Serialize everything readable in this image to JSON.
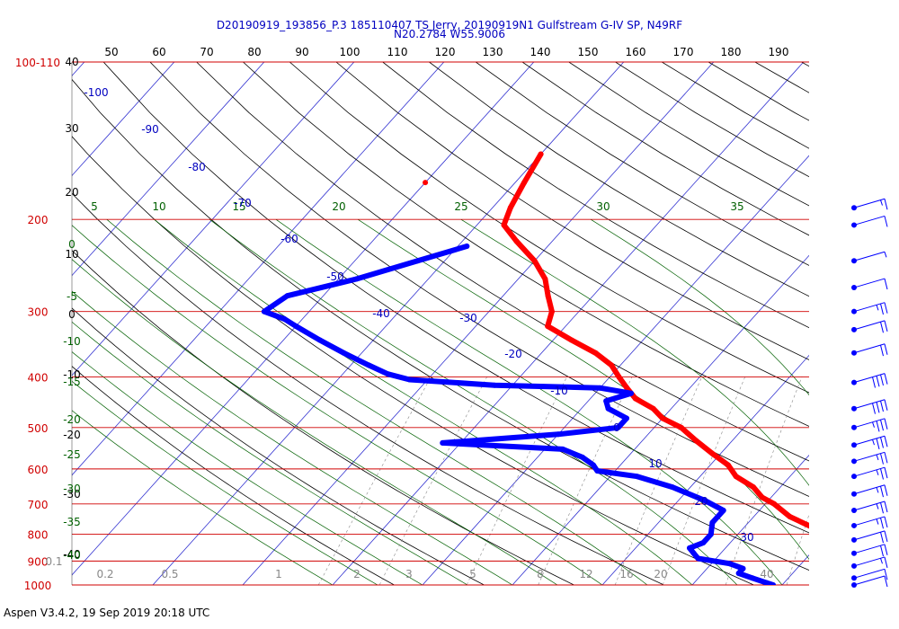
{
  "header": {
    "line1": "D20190919_193856_P.3 185110407 TS Jerry, 20190919N1 Gulfstream G-IV SP, N49RF",
    "line2": "N20.2784 W55.9006"
  },
  "footer": "Aspen V3.4.2, 19 Sep 2019  20:18 UTC",
  "chart_data": {
    "type": "line",
    "chart_kind": "skew-t log-p",
    "pressure_levels": [
      {
        "label": "100-110",
        "p": 100
      },
      {
        "label": "200",
        "p": 200
      },
      {
        "label": "300",
        "p": 300
      },
      {
        "label": "400",
        "p": 400
      },
      {
        "label": "500",
        "p": 500
      },
      {
        "label": "600",
        "p": 600
      },
      {
        "label": "700",
        "p": 700
      },
      {
        "label": "800",
        "p": 800
      },
      {
        "label": "900",
        "p": 900
      },
      {
        "label": "1000",
        "p": 1000
      }
    ],
    "theta_top_labels": [
      "50",
      "60",
      "70",
      "80",
      "90",
      "100",
      "110",
      "120",
      "130",
      "140",
      "150",
      "160",
      "170",
      "180",
      "190"
    ],
    "height_labels": [
      "40",
      "30",
      "20",
      "10",
      "0",
      "-10",
      "-20",
      "-30",
      "-40"
    ],
    "moist_labels": [
      "0",
      "-5",
      "-10",
      "-15",
      "-20",
      "-25",
      "-30",
      "-35",
      "-40"
    ],
    "mixing_top_labels": [
      "5",
      "10",
      "15",
      "20",
      "25",
      "30",
      "35"
    ],
    "mixing_bottom_labels": [
      "0.1",
      "0.2",
      "0.5",
      "1",
      "2",
      "3",
      "5",
      "8",
      "12",
      "16",
      "20",
      "40"
    ],
    "isotherm_labels": [
      "-100",
      "-90",
      "-80",
      "-70",
      "-60",
      "-50",
      "-40",
      "-30",
      "-20",
      "-10",
      "0",
      "10",
      "20",
      "30"
    ],
    "temperature_profile": [
      [
        150,
        -60
      ],
      [
        170,
        -59
      ],
      [
        190,
        -58
      ],
      [
        205,
        -57
      ],
      [
        220,
        -54
      ],
      [
        240,
        -50
      ],
      [
        260,
        -47
      ],
      [
        280,
        -45
      ],
      [
        300,
        -43
      ],
      [
        320,
        -42
      ],
      [
        340,
        -38
      ],
      [
        360,
        -34
      ],
      [
        380,
        -31
      ],
      [
        400,
        -29
      ],
      [
        420,
        -27
      ],
      [
        440,
        -25
      ],
      [
        460,
        -22
      ],
      [
        480,
        -20
      ],
      [
        500,
        -17
      ],
      [
        530,
        -14
      ],
      [
        560,
        -11
      ],
      [
        590,
        -8
      ],
      [
        620,
        -6
      ],
      [
        650,
        -3
      ],
      [
        680,
        -1
      ],
      [
        700,
        1
      ],
      [
        740,
        4
      ],
      [
        780,
        8
      ],
      [
        820,
        11
      ],
      [
        860,
        14
      ],
      [
        900,
        16
      ],
      [
        940,
        19
      ],
      [
        970,
        21
      ],
      [
        995,
        24
      ]
    ],
    "temperature_outlier": [
      170,
      -70
    ],
    "dewpoint_profile": [
      [
        225,
        -59
      ],
      [
        240,
        -63
      ],
      [
        260,
        -68
      ],
      [
        280,
        -74
      ],
      [
        300,
        -75
      ],
      [
        310,
        -72
      ],
      [
        320,
        -70
      ],
      [
        340,
        -66
      ],
      [
        360,
        -62
      ],
      [
        380,
        -58
      ],
      [
        395,
        -55
      ],
      [
        405,
        -52
      ],
      [
        415,
        -42
      ],
      [
        420,
        -30
      ],
      [
        430,
        -26
      ],
      [
        445,
        -28
      ],
      [
        460,
        -27
      ],
      [
        480,
        -24
      ],
      [
        500,
        -24
      ],
      [
        515,
        -30
      ],
      [
        535,
        -42
      ],
      [
        550,
        -28
      ],
      [
        570,
        -25
      ],
      [
        590,
        -23
      ],
      [
        605,
        -22
      ],
      [
        620,
        -17
      ],
      [
        650,
        -12
      ],
      [
        690,
        -7
      ],
      [
        720,
        -4
      ],
      [
        760,
        -4
      ],
      [
        800,
        -3
      ],
      [
        830,
        -3
      ],
      [
        850,
        -4
      ],
      [
        870,
        -3
      ],
      [
        890,
        -2
      ],
      [
        910,
        2
      ],
      [
        930,
        4
      ],
      [
        950,
        4
      ],
      [
        970,
        6
      ],
      [
        990,
        8
      ],
      [
        1000,
        9
      ]
    ],
    "wind_barbs": {
      "pressures": [
        190,
        205,
        240,
        270,
        300,
        325,
        360,
        410,
        460,
        500,
        540,
        580,
        620,
        670,
        720,
        770,
        820,
        870,
        920,
        970,
        1000
      ],
      "speeds_kt": [
        15,
        10,
        5,
        10,
        25,
        20,
        20,
        40,
        40,
        35,
        35,
        25,
        25,
        25,
        25,
        25,
        20,
        20,
        15,
        10,
        10
      ]
    }
  }
}
